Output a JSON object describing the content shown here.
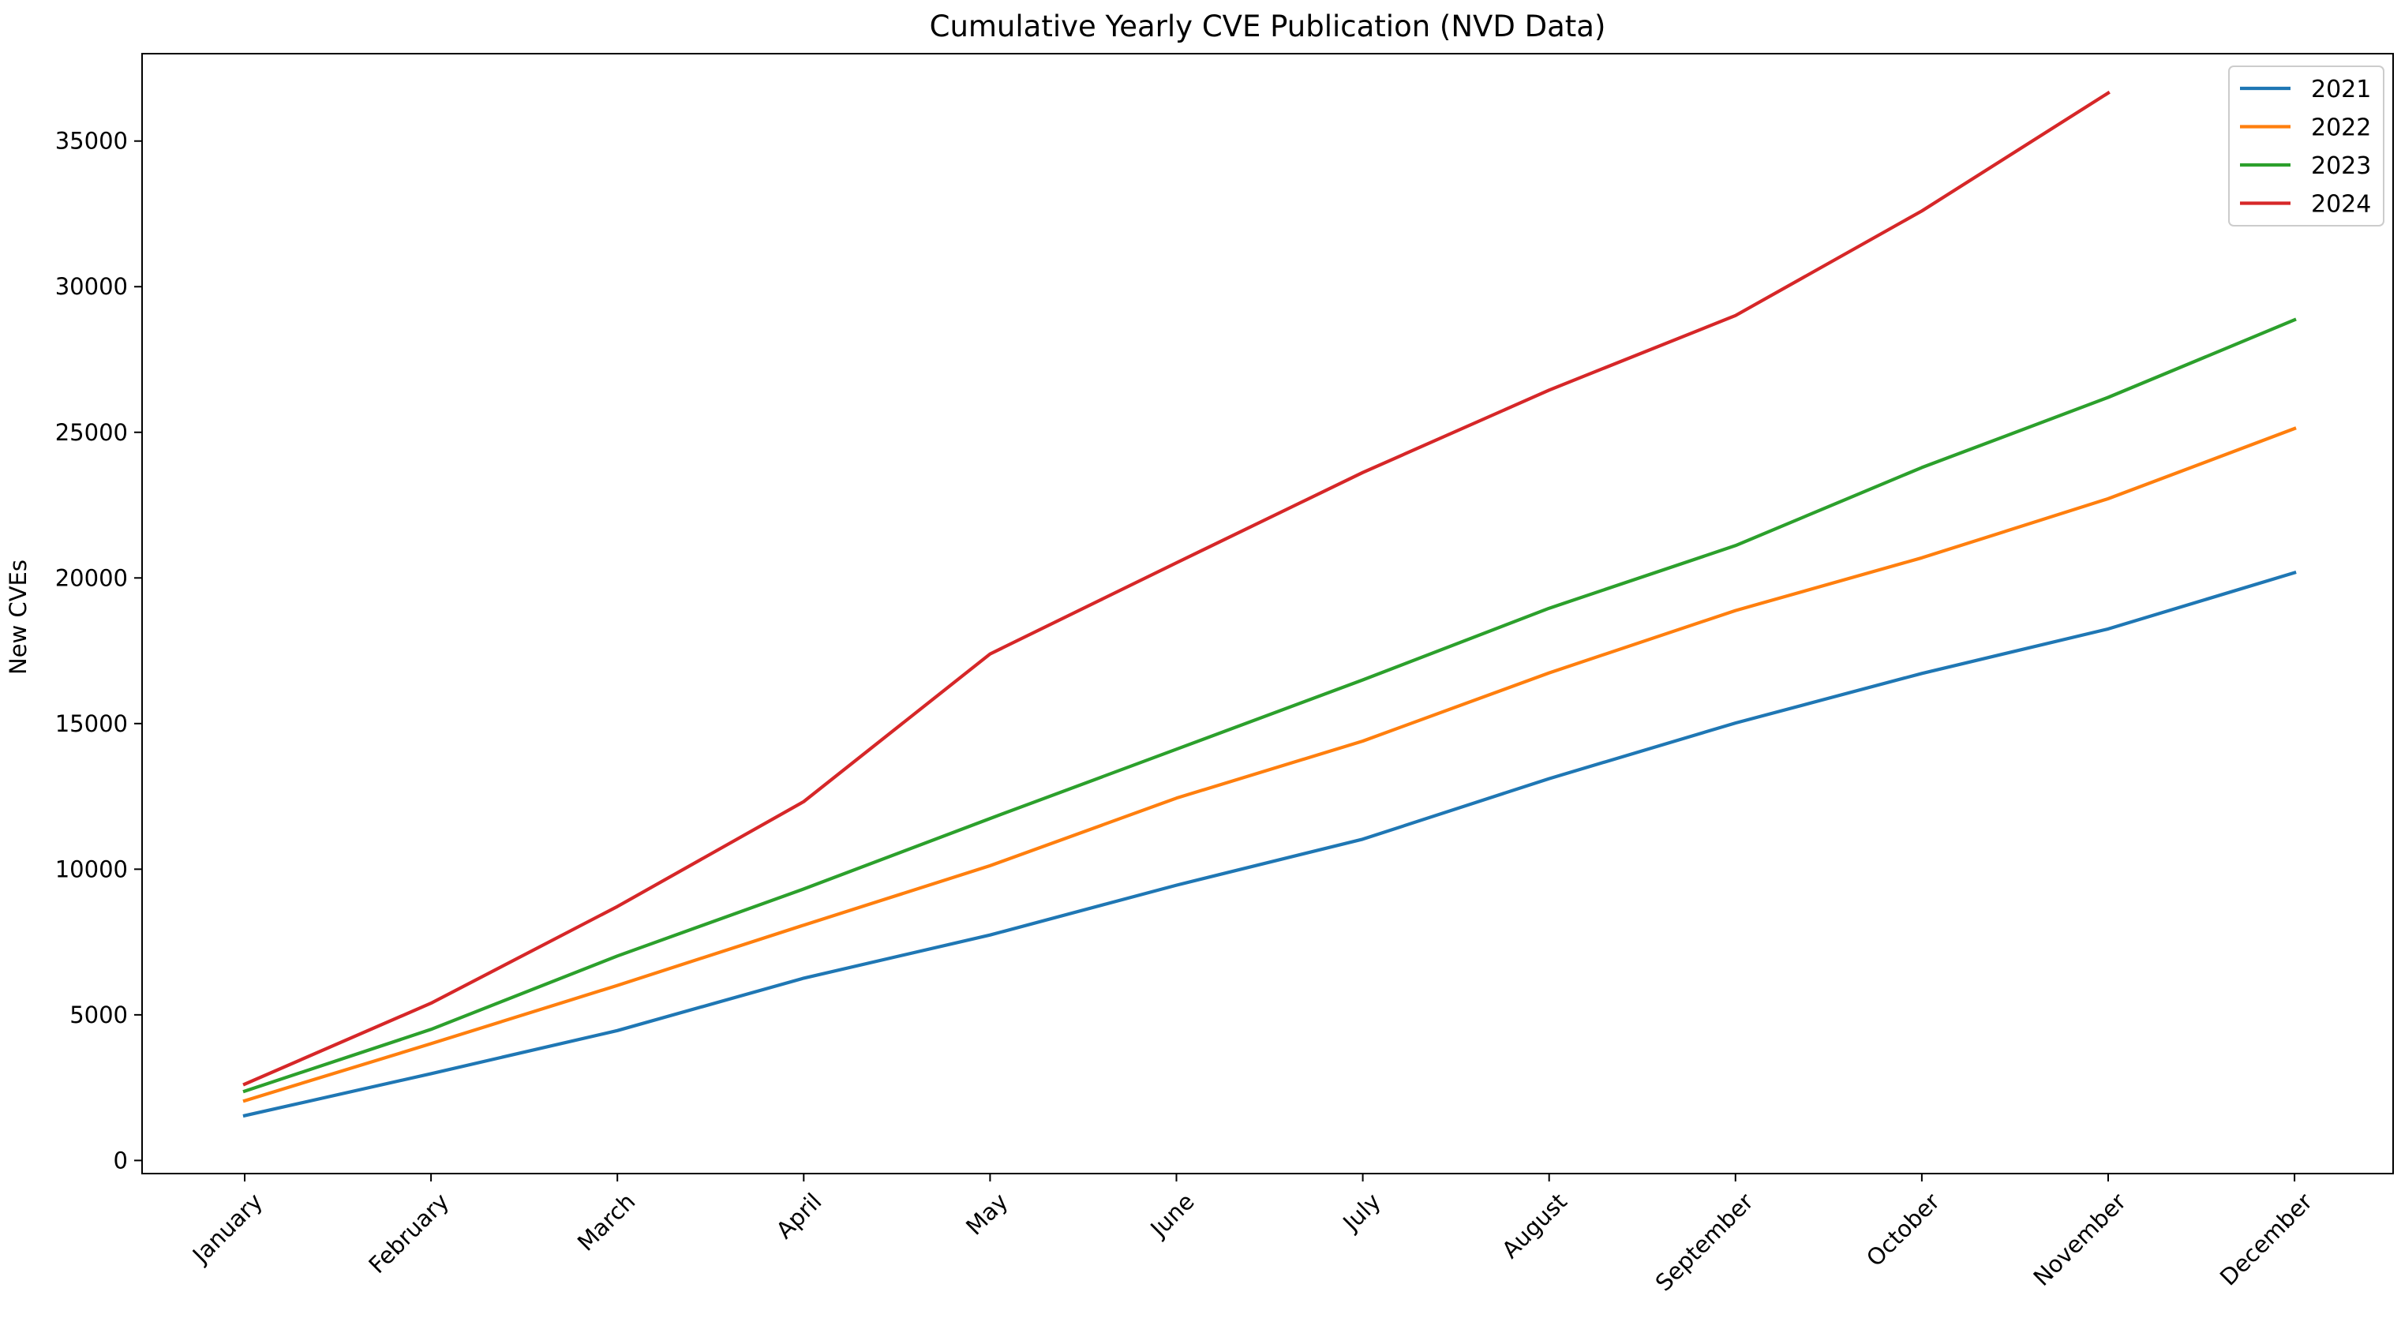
{
  "chart_data": {
    "type": "line",
    "title": "Cumulative Yearly CVE Publication (NVD Data)",
    "xlabel": "",
    "ylabel": "New CVEs",
    "categories": [
      "January",
      "February",
      "March",
      "April",
      "May",
      "June",
      "July",
      "August",
      "September",
      "October",
      "November",
      "December"
    ],
    "yticks": [
      0,
      5000,
      10000,
      15000,
      20000,
      25000,
      30000,
      35000
    ],
    "ylim": [
      -450,
      38000
    ],
    "grid": false,
    "legend_position": "top-right",
    "series": [
      {
        "name": "2021",
        "color": "#1f77b4",
        "values": [
          1540,
          2980,
          4460,
          6260,
          7740,
          9450,
          11030,
          13110,
          15020,
          16720,
          18250,
          20180
        ]
      },
      {
        "name": "2022",
        "color": "#ff7f0e",
        "values": [
          2050,
          4010,
          6010,
          8080,
          10120,
          12440,
          14400,
          16740,
          18880,
          20690,
          22720,
          25130
        ]
      },
      {
        "name": "2023",
        "color": "#2ca02c",
        "values": [
          2380,
          4500,
          7020,
          9320,
          11740,
          14120,
          16500,
          18960,
          21110,
          23790,
          26200,
          28860
        ]
      },
      {
        "name": "2024",
        "color": "#d62728",
        "values": [
          2620,
          5400,
          8720,
          12320,
          17390,
          20520,
          23620,
          26450,
          29010,
          32600,
          36650,
          null
        ]
      }
    ]
  }
}
